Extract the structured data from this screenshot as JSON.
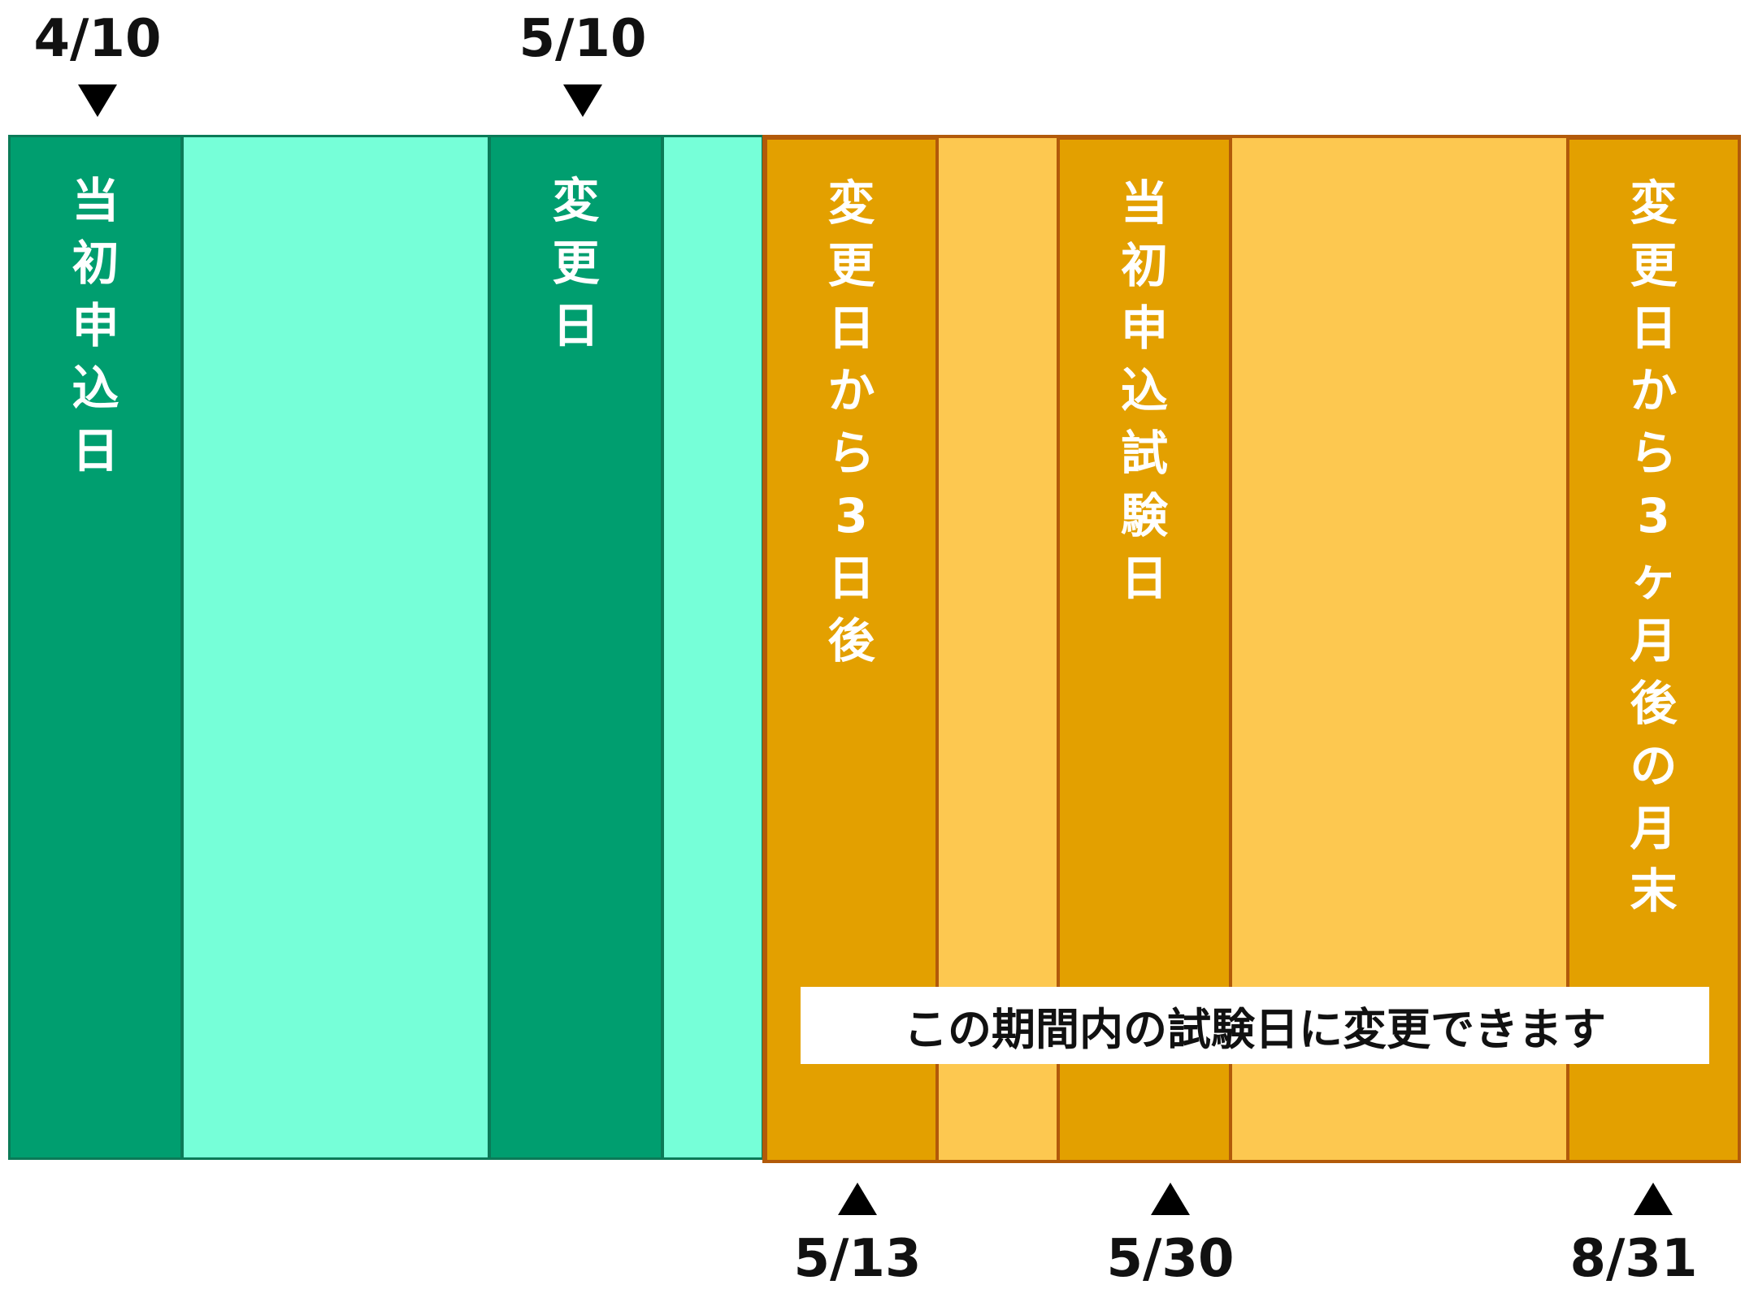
{
  "top_dates": [
    "4/10",
    "5/10"
  ],
  "bottom_dates": [
    "5/13",
    "5/30",
    "8/31"
  ],
  "columns": {
    "initial_application_date": "当初申込日",
    "change_date": "変更日",
    "three_days_after_change": "変更日から3日後",
    "initial_exam_date": "当初申込試験日",
    "month_end_three_months_after": "変更日から3ヶ月後の月末"
  },
  "note": "この期間内の試験日に変更できます",
  "colors": {
    "green_dark": "#009e6f",
    "green_light": "#76ffd8",
    "orange_dark": "#e3a000",
    "orange_light": "#fdc850",
    "orange_border": "#b25a0a"
  }
}
